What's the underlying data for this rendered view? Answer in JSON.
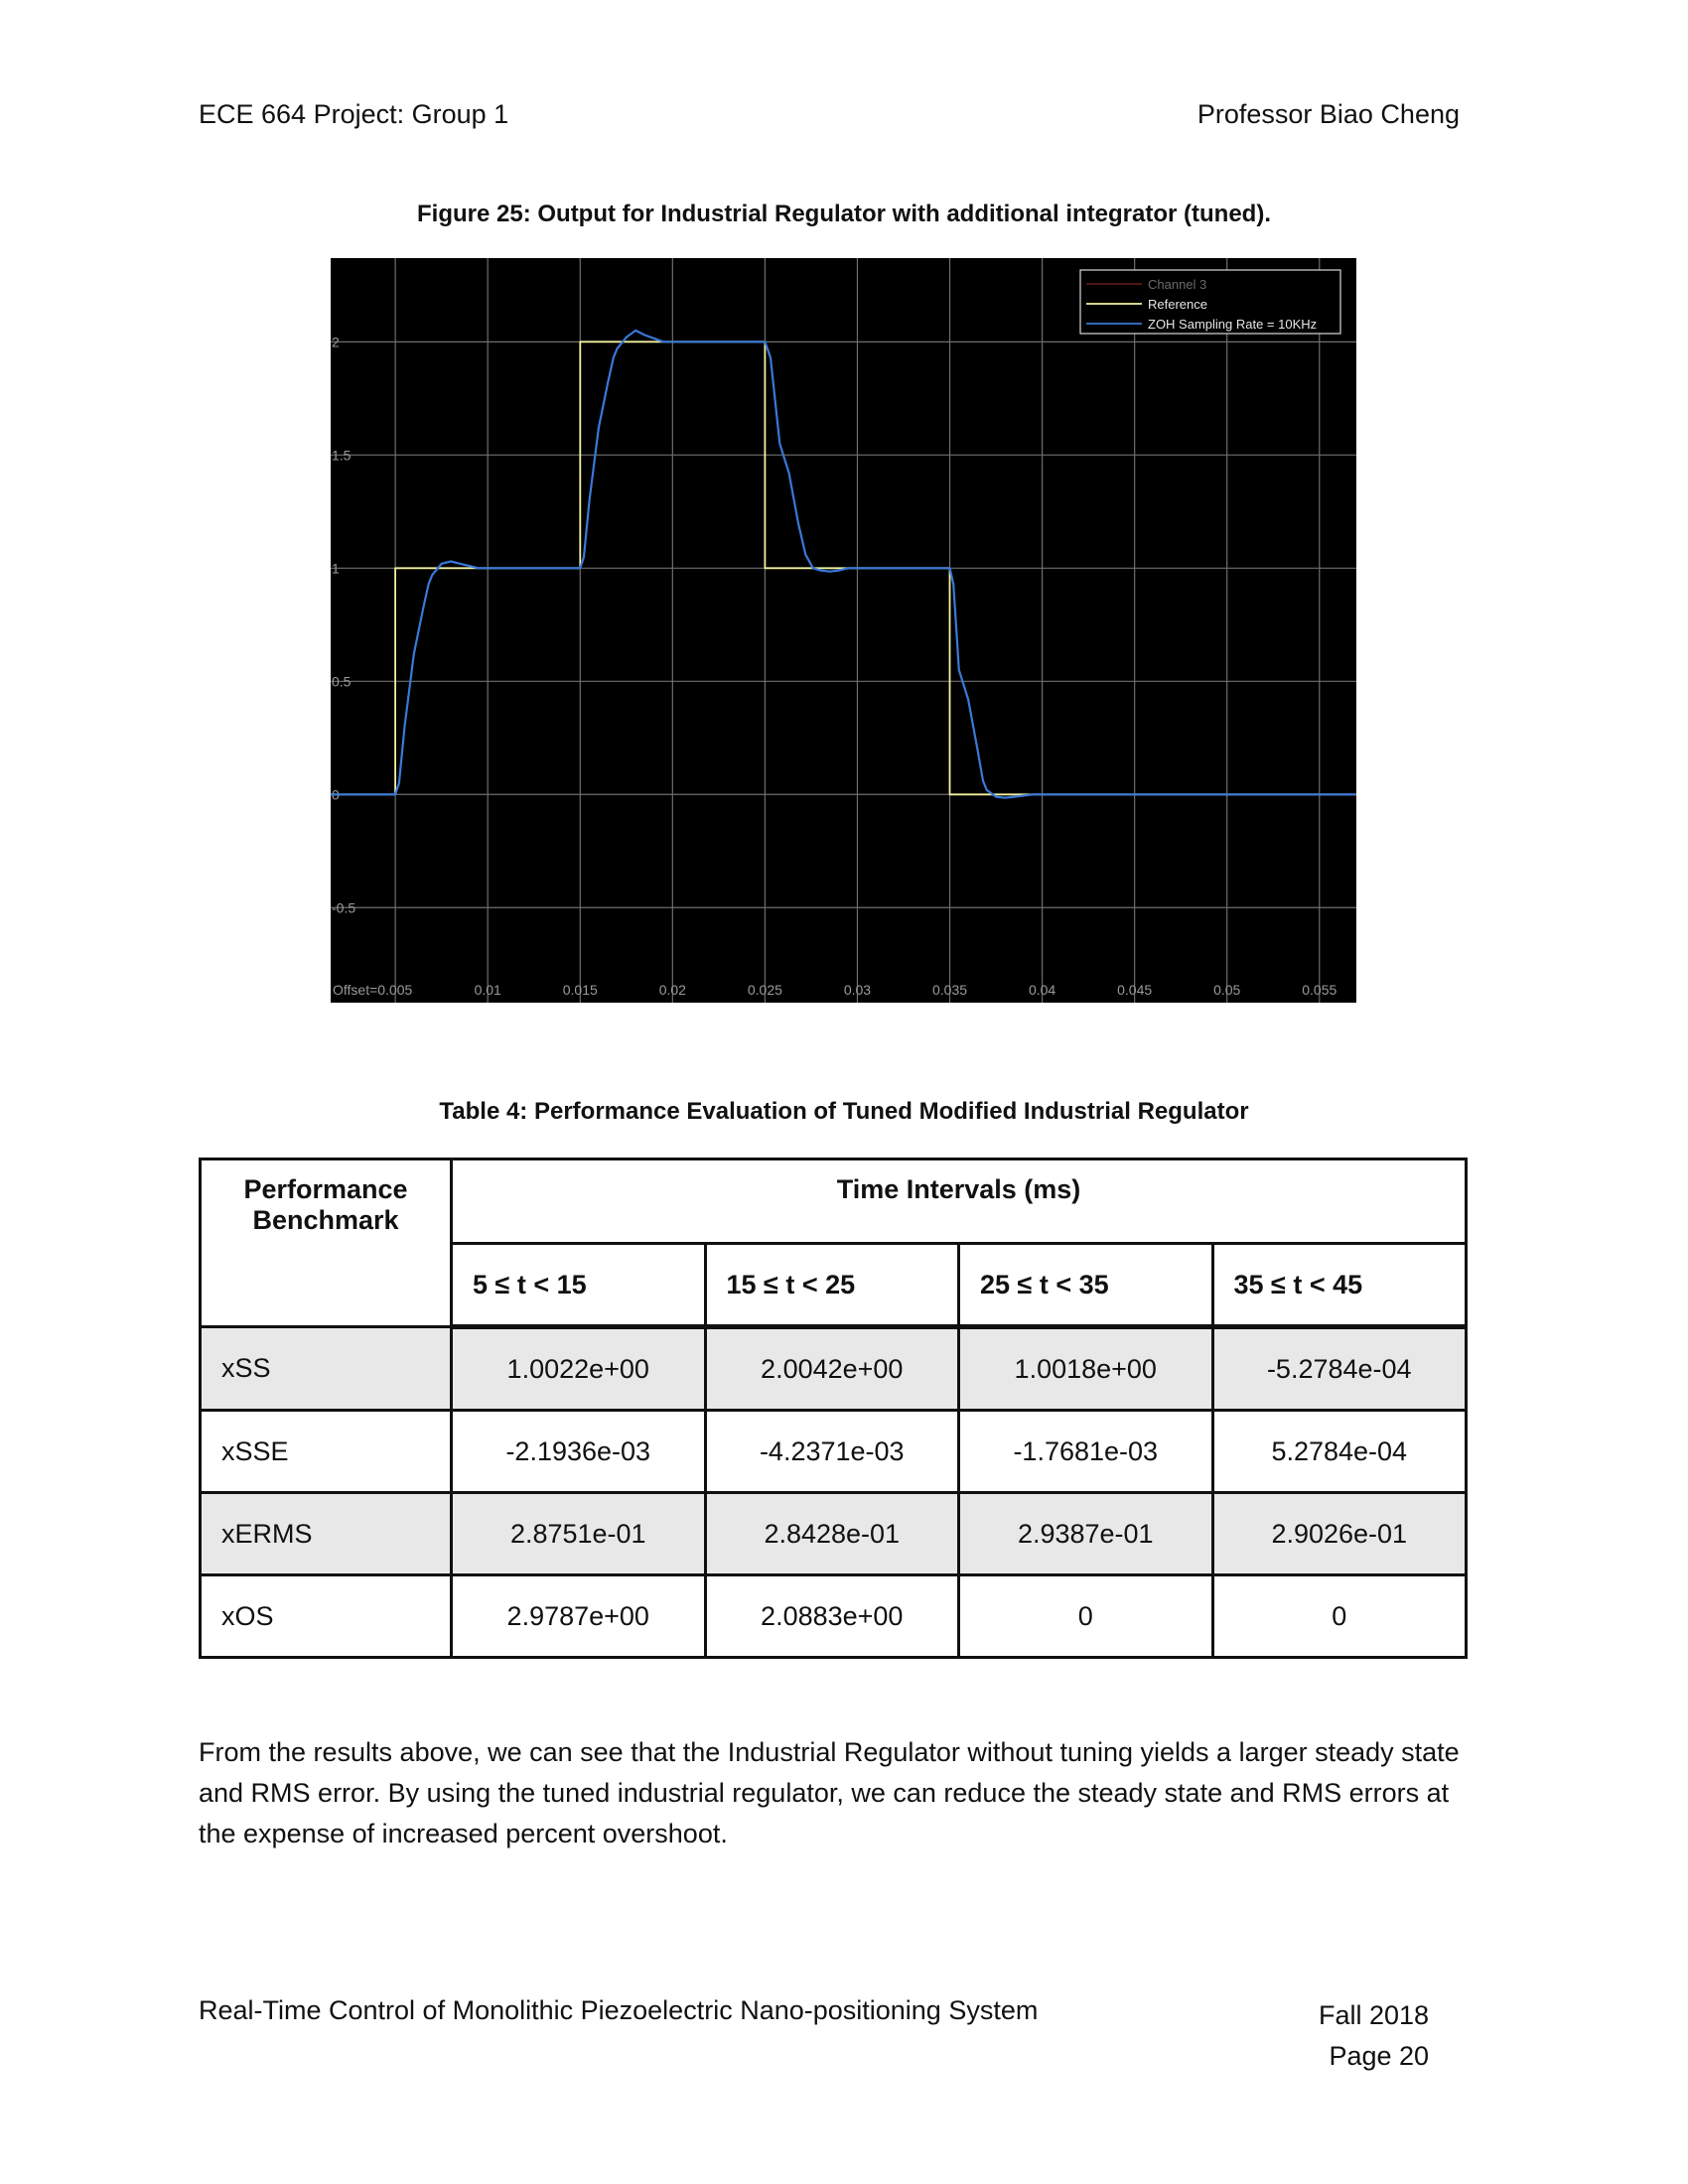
{
  "header": {
    "left": "ECE 664 Project: Group 1",
    "right": "Professor Biao Cheng"
  },
  "figure": {
    "caption": "Figure 25: Output for Industrial Regulator with additional integrator (tuned).",
    "chart_data": {
      "type": "line",
      "title": "",
      "xlabel": "",
      "ylabel": "",
      "xlim": [
        0.0015,
        0.057
      ],
      "ylim": [
        -0.92,
        2.37
      ],
      "x_ticks": [
        0.005,
        0.01,
        0.015,
        0.02,
        0.025,
        0.03,
        0.035,
        0.04,
        0.045,
        0.05,
        0.055
      ],
      "x_tick_labels": [
        "Offset=0.005",
        "0.01",
        "0.015",
        "0.02",
        "0.025",
        "0.03",
        "0.035",
        "0.04",
        "0.045",
        "0.05",
        "0.055"
      ],
      "y_ticks": [
        -0.5,
        0,
        0.5,
        1,
        1.5,
        2
      ],
      "y_tick_labels": [
        "-0.5",
        "0",
        "0.5",
        "1",
        "1.5",
        "2"
      ],
      "grid": true,
      "background": "#000000",
      "legend_position": "top-right",
      "series": [
        {
          "name": "Channel 3",
          "color": "#5a1a1a",
          "x": [],
          "y": []
        },
        {
          "name": "Reference",
          "color": "#f2f2a0",
          "x": [
            0.0015,
            0.005,
            0.005,
            0.015,
            0.015,
            0.025,
            0.025,
            0.035,
            0.035,
            0.057
          ],
          "y": [
            0,
            0,
            1,
            1,
            2,
            2,
            1,
            1,
            0,
            0
          ]
        },
        {
          "name": "ZOH Sampling Rate = 10KHz",
          "color": "#3a78d8",
          "x": [
            0.0015,
            0.005,
            0.0052,
            0.0055,
            0.006,
            0.0065,
            0.0068,
            0.007,
            0.0075,
            0.008,
            0.0085,
            0.0095,
            0.015,
            0.0152,
            0.0155,
            0.016,
            0.0165,
            0.0168,
            0.017,
            0.0175,
            0.018,
            0.0185,
            0.0195,
            0.025,
            0.0253,
            0.0258,
            0.0263,
            0.0268,
            0.0272,
            0.0276,
            0.028,
            0.0285,
            0.029,
            0.0295,
            0.035,
            0.0352,
            0.0355,
            0.036,
            0.0365,
            0.0368,
            0.037,
            0.0375,
            0.038,
            0.0385,
            0.0395,
            0.057
          ],
          "y": [
            0,
            0,
            0.05,
            0.3,
            0.62,
            0.82,
            0.93,
            0.97,
            1.02,
            1.03,
            1.02,
            1.0,
            1.0,
            1.05,
            1.3,
            1.62,
            1.82,
            1.93,
            1.97,
            2.02,
            2.05,
            2.03,
            2.0,
            2.0,
            1.93,
            1.55,
            1.42,
            1.2,
            1.06,
            1.0,
            0.99,
            0.985,
            0.99,
            1.0,
            1.0,
            0.93,
            0.55,
            0.42,
            0.2,
            0.06,
            0.02,
            -0.01,
            -0.015,
            -0.01,
            0,
            0
          ]
        }
      ]
    }
  },
  "table": {
    "caption": "Table 4: Performance Evaluation of Tuned Modified Industrial Regulator",
    "benchmark_header": "Performance Benchmark",
    "time_header": "Time Intervals (ms)",
    "intervals": [
      "5 ≤ t < 15",
      "15 ≤ t < 25",
      "25 ≤ t < 35",
      "35 ≤ t < 45"
    ],
    "rows": [
      {
        "label": "xSS",
        "values": [
          "1.0022e+00",
          "2.0042e+00",
          "1.0018e+00",
          "-5.2784e-04"
        ]
      },
      {
        "label": "xSSE",
        "values": [
          "-2.1936e-03",
          "-4.2371e-03",
          "-1.7681e-03",
          "5.2784e-04"
        ]
      },
      {
        "label": "xERMS",
        "values": [
          "2.8751e-01",
          "2.8428e-01",
          "2.9387e-01",
          "2.9026e-01"
        ]
      },
      {
        "label": "xOS",
        "values": [
          "2.9787e+00",
          "2.0883e+00",
          "0",
          "0"
        ]
      }
    ]
  },
  "body_text": "From the results above, we can see that the Industrial Regulator without tuning yields a larger steady state and RMS error. By using the tuned industrial regulator, we can reduce the steady state and RMS errors at the expense of increased percent overshoot.",
  "footer": {
    "left": "Real-Time Control of Monolithic Piezoelectric Nano-positioning System",
    "term": "Fall 2018",
    "page": "Page 20"
  }
}
